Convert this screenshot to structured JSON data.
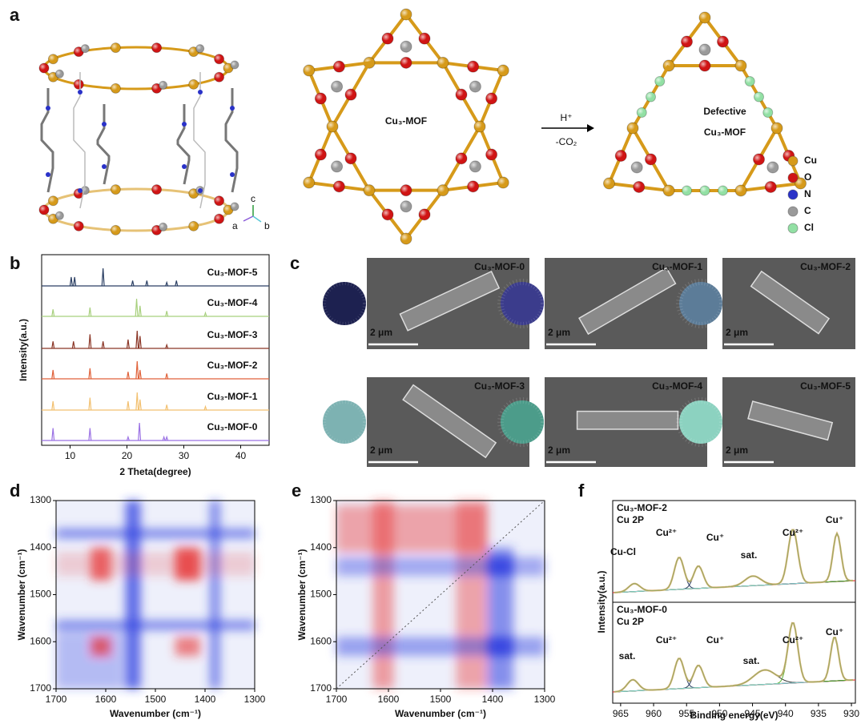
{
  "panels": {
    "a": {
      "label": "a",
      "mof": "Cu₃-MOF",
      "defective": [
        "Defective",
        "Cu₃-MOF"
      ],
      "reagent": "H⁺",
      "byproduct": "-CO₂",
      "axes": [
        "c",
        "a",
        "b"
      ],
      "legend": [
        {
          "name": "Cu",
          "color": "#d69a1a"
        },
        {
          "name": "O",
          "color": "#d01414"
        },
        {
          "name": "N",
          "color": "#2a32c8"
        },
        {
          "name": "C",
          "color": "#9a9a9a"
        },
        {
          "name": "Cl",
          "color": "#92e0a4"
        }
      ]
    },
    "b": {
      "label": "b",
      "type": "line",
      "xlabel": "2 Theta(degree)",
      "ylabel": "Intensity(a.u.)",
      "xlim": [
        5,
        45
      ],
      "xticks": [
        10,
        20,
        30,
        40
      ],
      "series": [
        {
          "name": "Cu₃-MOF-5",
          "color": "#2b3f63",
          "peaks": [
            10.2,
            10.8,
            15.8,
            21,
            23.5,
            27,
            28.7
          ],
          "heights": [
            0.5,
            0.5,
            1,
            0.3,
            0.3,
            0.2,
            0.3
          ]
        },
        {
          "name": "Cu₃-MOF-4",
          "color": "#a8d07e",
          "peaks": [
            7,
            13.5,
            21.7,
            22.3,
            27,
            33.8
          ],
          "heights": [
            0.4,
            0.5,
            1,
            0.6,
            0.3,
            0.2
          ]
        },
        {
          "name": "Cu₃-MOF-3",
          "color": "#8b3626",
          "peaks": [
            7,
            10.6,
            13.5,
            15.8,
            20.2,
            21.8,
            22.3,
            27
          ],
          "heights": [
            0.4,
            0.4,
            0.8,
            0.4,
            0.5,
            1,
            0.7,
            0.2
          ]
        },
        {
          "name": "Cu₃-MOF-2",
          "color": "#e0623a",
          "peaks": [
            7,
            13.5,
            20.2,
            21.8,
            22.3,
            27
          ],
          "heights": [
            0.5,
            0.6,
            0.4,
            1,
            0.5,
            0.3
          ]
        },
        {
          "name": "Cu₃-MOF-1",
          "color": "#f2c070",
          "peaks": [
            7,
            13.5,
            20.2,
            21.8,
            22.3,
            27,
            33.8
          ],
          "heights": [
            0.5,
            0.7,
            0.5,
            1,
            0.6,
            0.3,
            0.2
          ]
        },
        {
          "name": "Cu₃-MOF-0",
          "color": "#9b72e4",
          "peaks": [
            7,
            13.5,
            20.2,
            22.2,
            26.5,
            27
          ],
          "heights": [
            0.7,
            0.7,
            0.2,
            1,
            0.2,
            0.2
          ]
        }
      ]
    },
    "c": {
      "label": "c",
      "images": [
        {
          "name": "Cu₃-MOF-0",
          "scale": "2 μm",
          "color": "#1d2150"
        },
        {
          "name": "Cu₃-MOF-1",
          "scale": "2 μm",
          "color": "#3b3c8c"
        },
        {
          "name": "Cu₃-MOF-2",
          "scale": "2 μm",
          "color": "#5c7c98"
        },
        {
          "name": "Cu₃-MOF-3",
          "scale": "2 μm",
          "color": "#7db2b2"
        },
        {
          "name": "Cu₃-MOF-4",
          "scale": "2 μm",
          "color": "#4c9c8a"
        },
        {
          "name": "Cu₃-MOF-5",
          "scale": "2 μm",
          "color": "#8cd2c0"
        }
      ]
    },
    "d": {
      "label": "d",
      "xlabel": "Wavenumber (cm⁻¹)",
      "ylabel": "Wavenumber (cm⁻¹)",
      "xlim": [
        1700,
        1300
      ],
      "ylim": [
        1300,
        1700
      ],
      "xticks": [
        1700,
        1600,
        1500,
        1400,
        1300
      ],
      "yticks": [
        1300,
        1400,
        1500,
        1600,
        1700
      ]
    },
    "e": {
      "label": "e",
      "xlabel": "Wavenumber (cm⁻¹)",
      "ylabel": "Wavenumber (cm⁻¹)",
      "xlim": [
        1700,
        1300
      ],
      "ylim": [
        1300,
        1700
      ],
      "xticks": [
        1700,
        1600,
        1500,
        1400,
        1300
      ],
      "yticks": [
        1300,
        1400,
        1500,
        1600,
        1700
      ]
    },
    "f": {
      "label": "f",
      "xlabel": "Binding energy(eV)",
      "ylabel": "Intensity(a.u.)",
      "xlim": [
        966.2,
        929.4
      ],
      "xticks": [
        965,
        960,
        955,
        950,
        945,
        940,
        935,
        930
      ],
      "top": {
        "sample": "Cu₃-MOF-2",
        "orbital": "Cu 2P",
        "notes": [
          "Cu-Cl",
          "Cu²⁺",
          "Cu⁺",
          "sat.",
          "Cu²⁺",
          "Cu⁺"
        ]
      },
      "bottom": {
        "sample": "Cu₃-MOF-0",
        "orbital": "Cu 2P",
        "notes": [
          "sat.",
          "Cu²⁺",
          "Cu⁺",
          "sat.",
          "Cu²⁺",
          "Cu⁺"
        ]
      }
    }
  }
}
